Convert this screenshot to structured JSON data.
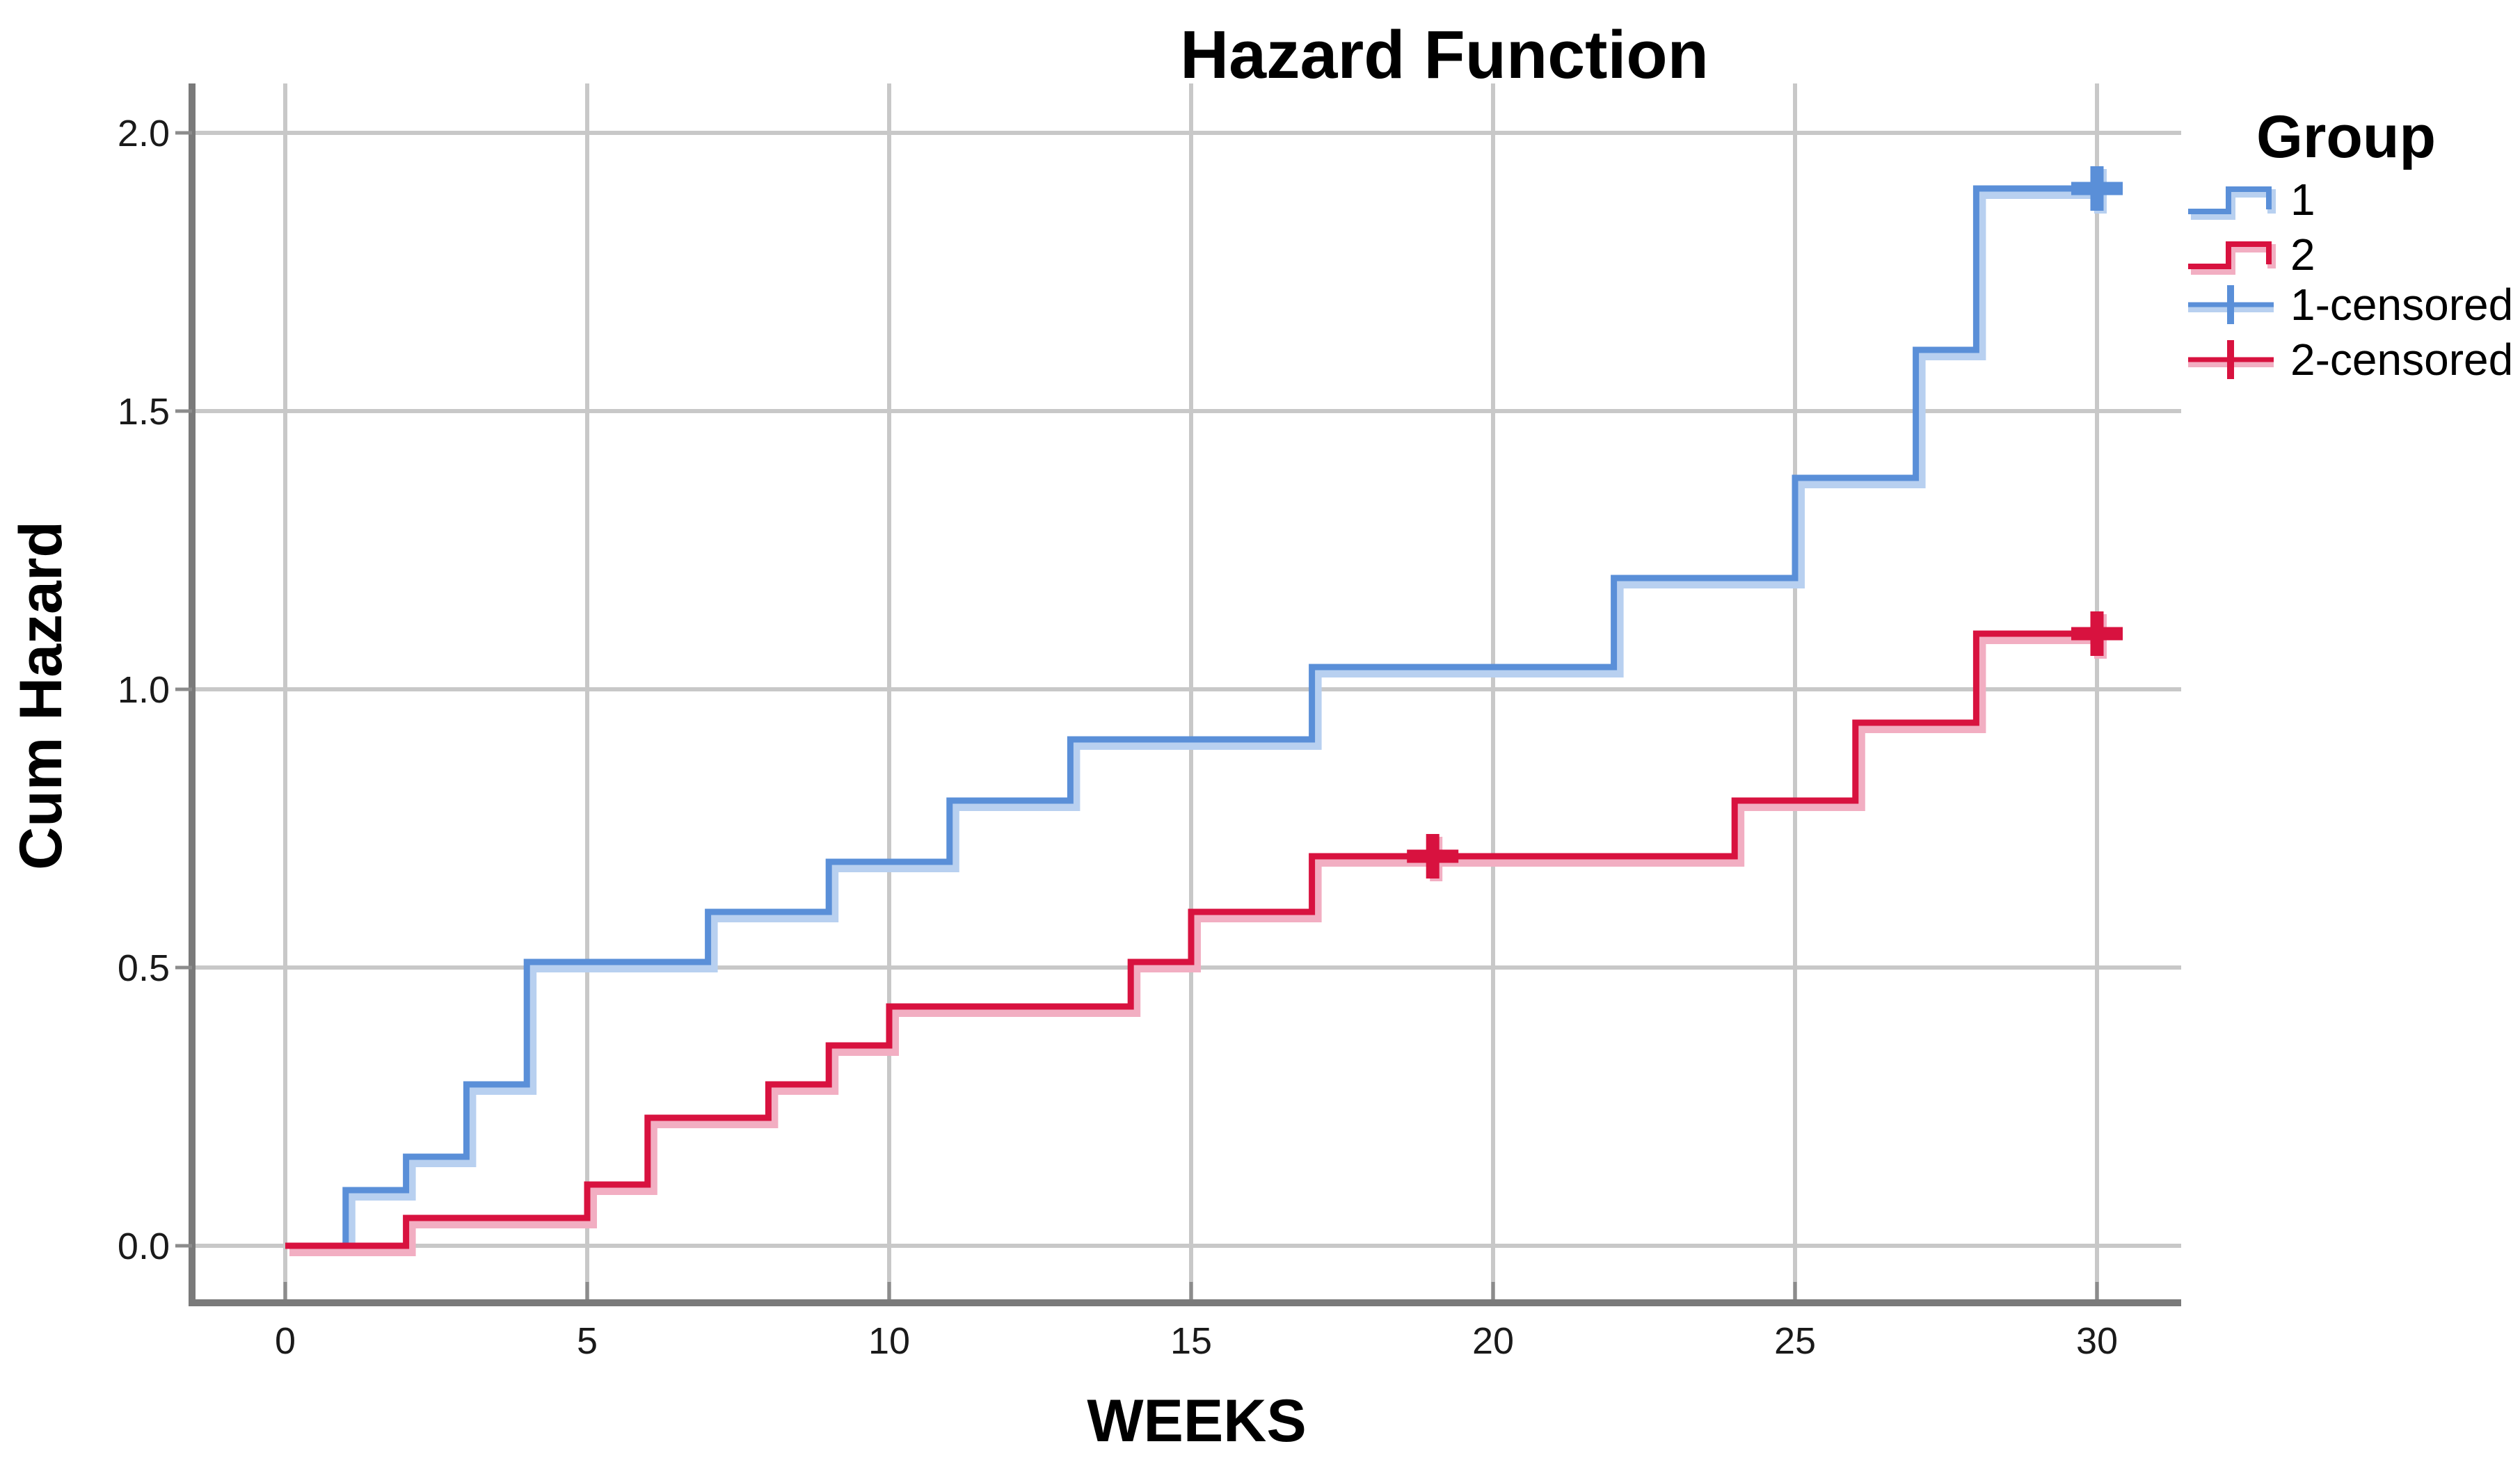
{
  "title": "Hazard Function",
  "axes": {
    "x": {
      "label": "WEEKS",
      "ticks": [
        "0",
        "5",
        "10",
        "15",
        "20",
        "25",
        "30"
      ],
      "tick_values": [
        0,
        5,
        10,
        15,
        20,
        25,
        30
      ]
    },
    "y": {
      "label": "Cum Hazard",
      "ticks": [
        "0.0",
        "0.5",
        "1.0",
        "1.5",
        "2.0"
      ],
      "tick_values": [
        0,
        0.5,
        1.0,
        1.5,
        2.0
      ]
    }
  },
  "legend": {
    "title": "Group",
    "items": [
      {
        "label": "1",
        "swatch": "step-line",
        "color": "#5A8FD8",
        "halo": "#B8D0F0"
      },
      {
        "label": "2",
        "swatch": "step-line",
        "color": "#D8123F",
        "halo": "#F2AEC2"
      },
      {
        "label": "1-censored",
        "swatch": "censored-cross",
        "color": "#5A8FD8",
        "halo": "#B8D0F0"
      },
      {
        "label": "2-censored",
        "swatch": "censored-cross",
        "color": "#D8123F",
        "halo": "#F2AEC2"
      }
    ]
  },
  "chart_data": {
    "type": "line",
    "subtype": "step-post cumulative hazard (survival analysis)",
    "title": "Hazard Function",
    "xlabel": "WEEKS",
    "ylabel": "Cum Hazard",
    "xlim": [
      -1.6,
      31.4
    ],
    "ylim": [
      -0.11,
      2.09
    ],
    "x_gridlines": [
      0,
      5,
      10,
      15,
      20,
      25,
      30
    ],
    "y_gridlines": [
      0,
      0.5,
      1.0,
      1.5,
      2.0
    ],
    "grid": true,
    "legend_position": "right",
    "series": [
      {
        "name": "1",
        "color": "#5A8FD8",
        "halo_color": "#B8D0F0",
        "start": [
          0,
          0.0
        ],
        "steps": [
          [
            1,
            0.1
          ],
          [
            2,
            0.16
          ],
          [
            3,
            0.29
          ],
          [
            4,
            0.51
          ],
          [
            7,
            0.6
          ],
          [
            9,
            0.69
          ],
          [
            11,
            0.8
          ],
          [
            13,
            0.91
          ],
          [
            17,
            1.04
          ],
          [
            22,
            1.2
          ],
          [
            25,
            1.38
          ],
          [
            27,
            1.61
          ],
          [
            28,
            1.9
          ]
        ],
        "end_x": 30,
        "censored_points": [
          [
            30,
            1.9
          ]
        ]
      },
      {
        "name": "2",
        "color": "#D8123F",
        "halo_color": "#F2AEC2",
        "start": [
          0,
          0.0
        ],
        "steps": [
          [
            2,
            0.05
          ],
          [
            5,
            0.11
          ],
          [
            6,
            0.23
          ],
          [
            8,
            0.29
          ],
          [
            9,
            0.36
          ],
          [
            10,
            0.43
          ],
          [
            14,
            0.51
          ],
          [
            15,
            0.6
          ],
          [
            17,
            0.7
          ],
          [
            24,
            0.8
          ],
          [
            26,
            0.94
          ],
          [
            28,
            1.1
          ]
        ],
        "end_x": 30,
        "censored_points": [
          [
            19,
            0.7
          ],
          [
            30,
            1.1
          ]
        ]
      }
    ]
  },
  "colors": {
    "background": "#ffffff",
    "gridline": "#C8C8C8",
    "axis_spine": "#7A7A7A",
    "tick_mark": "#8C8C8C",
    "text": "#000000"
  }
}
